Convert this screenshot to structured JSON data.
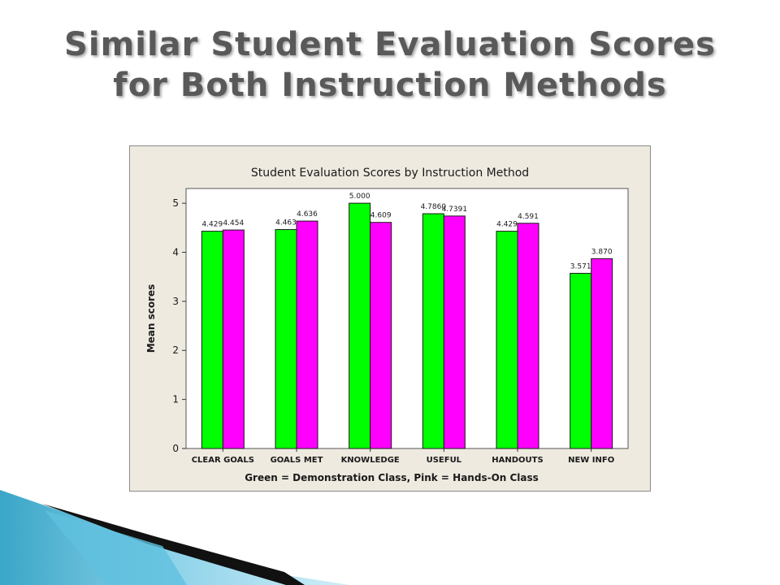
{
  "slide": {
    "title_line1": "Similar Student Evaluation Scores",
    "title_line2": "for Both Instruction Methods"
  },
  "chart_data": {
    "type": "bar",
    "title": "Student Evaluation Scores by Instruction Method",
    "ylabel": "Mean scores",
    "xlabel": "Green = Demonstration Class, Pink = Hands-On Class",
    "categories": [
      "CLEAR GOALS",
      "GOALS MET",
      "KNOWLEDGE",
      "USEFUL",
      "HANDOUTS",
      "NEW INFO"
    ],
    "series": [
      {
        "color": "#00ff00",
        "values": [
          4.429,
          4.463,
          5.0,
          4.786,
          4.429,
          3.571
        ],
        "labels": [
          "4.429",
          "4.463",
          "5.000",
          "4.7860",
          "4.429",
          "3.571"
        ]
      },
      {
        "color": "#ff00ff",
        "values": [
          4.454,
          4.636,
          4.609,
          4.7391,
          4.591,
          3.87
        ],
        "labels": [
          "4.454",
          "4.636",
          "4.609",
          "4.7391",
          "4.591",
          "3.870"
        ]
      }
    ],
    "yticks": [
      "0",
      "1",
      "2",
      "3",
      "4",
      "5"
    ],
    "ylim": [
      0,
      5.3
    ],
    "grid": false,
    "legend": "none"
  }
}
